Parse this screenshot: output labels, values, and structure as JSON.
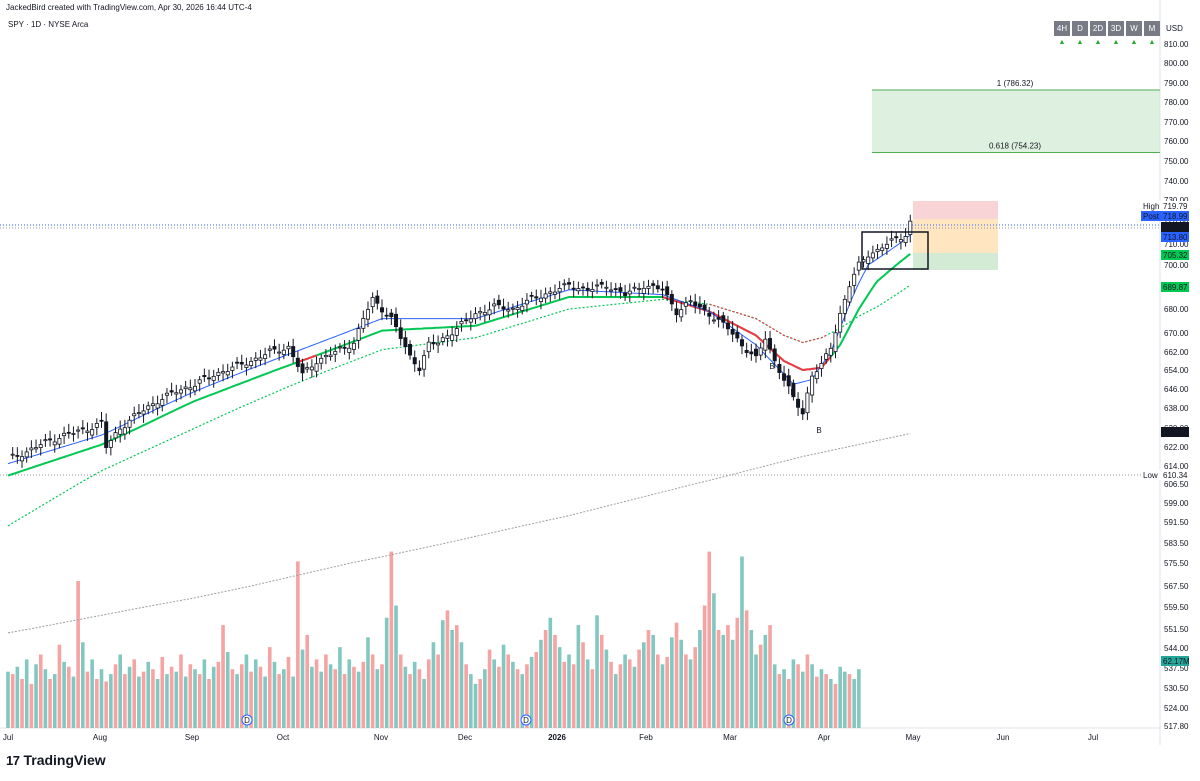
{
  "header": {
    "created": "JackedBird created with TradingView.com, Apr 30, 2026 16:44 UTC-4",
    "symbol": "SPY · 1D · NYSE Arca"
  },
  "timeframes": [
    {
      "label": "4H",
      "arrow": "▲"
    },
    {
      "label": "D",
      "arrow": "▲"
    },
    {
      "label": "2D",
      "arrow": "▲"
    },
    {
      "label": "3D",
      "arrow": "▲"
    },
    {
      "label": "W",
      "arrow": "▲"
    },
    {
      "label": "M",
      "arrow": "▲"
    }
  ],
  "currency": "USD",
  "footer": {
    "logo": "17",
    "brand": "TradingView"
  },
  "colors": {
    "up": "#089981",
    "down": "#f23645",
    "candle_body": "#131722",
    "ema_fast": "#2962ff",
    "ema_mid_up": "#00c853",
    "ema_mid_down": "#f23645",
    "ema_slow_up": "#00c853",
    "ema_slow_down": "#f23645",
    "sma200": "#9e9e9e",
    "vol_up": "#82c8c0",
    "vol_down": "#f5a3a3",
    "target_fill": "#c8e6c9",
    "target_line": "#4caf50",
    "pattern_label": "#2196f3",
    "price_tag": "#131722"
  },
  "chart_data": {
    "type": "candlestick",
    "title": "SPY · 1D · NYSE Arca",
    "xlabel": "",
    "ylabel": "",
    "x_ticks": [
      "Jul",
      "Aug",
      "Sep",
      "Oct",
      "Nov",
      "Dec",
      "2026",
      "Feb",
      "Mar",
      "Apr",
      "May",
      "Jun",
      "Jul"
    ],
    "y_ticks": [
      810,
      800,
      790,
      780,
      770,
      760,
      750,
      740,
      730,
      720,
      710,
      700,
      690,
      680,
      670,
      662,
      654,
      646,
      638,
      630,
      622,
      614,
      606.5,
      599,
      591.5,
      583.5,
      575.5,
      567.5,
      559.5,
      551.5,
      544,
      537.5,
      530.5,
      524,
      517.8
    ],
    "y_tick_labels": [
      "810.00",
      "800.00",
      "790.00",
      "780.00",
      "770.00",
      "760.00",
      "750.00",
      "740.00",
      "730.00",
      "720.00",
      "710.00",
      "700.00",
      "690.00",
      "680.00",
      "670.00",
      "662.00",
      "654.00",
      "646.00",
      "638.00",
      "630.00",
      "622.00",
      "614.00",
      "606.50",
      "599.00",
      "591.50",
      "583.50",
      "575.50",
      "567.50",
      "559.50",
      "551.50",
      "544.00",
      "537.50",
      "530.50",
      "524.00",
      "517.80"
    ],
    "ylim": [
      517.8,
      815
    ],
    "grid": false,
    "price_path": [
      [
        0,
        617
      ],
      [
        4,
        620
      ],
      [
        8,
        624
      ],
      [
        12,
        627
      ],
      [
        16,
        629
      ],
      [
        20,
        632
      ],
      [
        21,
        622
      ],
      [
        24,
        630
      ],
      [
        28,
        636
      ],
      [
        32,
        641
      ],
      [
        36,
        645
      ],
      [
        40,
        648
      ],
      [
        44,
        652
      ],
      [
        48,
        655
      ],
      [
        52,
        658
      ],
      [
        56,
        662
      ],
      [
        60,
        664
      ],
      [
        63,
        652
      ],
      [
        66,
        658
      ],
      [
        70,
        662
      ],
      [
        74,
        666
      ],
      [
        76,
        676
      ],
      [
        78,
        684
      ],
      [
        80,
        680
      ],
      [
        82,
        676
      ],
      [
        84,
        668
      ],
      [
        86,
        660
      ],
      [
        88,
        655
      ],
      [
        90,
        665
      ],
      [
        92,
        666
      ],
      [
        96,
        672
      ],
      [
        100,
        678
      ],
      [
        104,
        681
      ],
      [
        108,
        680
      ],
      [
        112,
        684
      ],
      [
        116,
        687
      ],
      [
        120,
        690
      ],
      [
        124,
        688
      ],
      [
        128,
        690
      ],
      [
        132,
        686
      ],
      [
        136,
        690
      ],
      [
        140,
        688
      ],
      [
        143,
        679
      ],
      [
        146,
        683
      ],
      [
        150,
        678
      ],
      [
        154,
        672
      ],
      [
        157,
        665
      ],
      [
        160,
        659
      ],
      [
        162,
        668
      ],
      [
        164,
        658
      ],
      [
        166,
        650
      ],
      [
        168,
        642
      ],
      [
        170,
        636
      ],
      [
        172,
        652
      ],
      [
        174,
        656
      ],
      [
        176,
        664
      ],
      [
        178,
        678
      ],
      [
        180,
        690
      ],
      [
        182,
        700
      ],
      [
        184,
        705
      ],
      [
        186,
        707
      ],
      [
        188,
        710
      ],
      [
        190,
        712
      ],
      [
        192,
        714
      ],
      [
        193,
        719
      ]
    ],
    "ema_fast_path": [
      [
        0,
        615
      ],
      [
        20,
        627
      ],
      [
        40,
        645
      ],
      [
        60,
        661
      ],
      [
        80,
        676
      ],
      [
        100,
        676
      ],
      [
        120,
        688
      ],
      [
        140,
        686
      ],
      [
        150,
        679
      ],
      [
        160,
        665
      ],
      [
        168,
        648
      ],
      [
        172,
        650
      ],
      [
        176,
        662
      ],
      [
        180,
        682
      ],
      [
        184,
        700
      ],
      [
        188,
        706
      ],
      [
        193,
        713.8
      ]
    ],
    "ema_mid_path": [
      [
        0,
        610
      ],
      [
        20,
        623
      ],
      [
        40,
        641
      ],
      [
        60,
        656
      ],
      [
        80,
        671
      ],
      [
        100,
        673
      ],
      [
        120,
        685
      ],
      [
        140,
        685
      ],
      [
        150,
        679
      ],
      [
        160,
        669
      ],
      [
        166,
        658
      ],
      [
        170,
        654
      ],
      [
        174,
        655
      ],
      [
        178,
        665
      ],
      [
        182,
        680
      ],
      [
        186,
        692
      ],
      [
        190,
        700
      ],
      [
        193,
        705.3
      ]
    ],
    "ema_slow_path": [
      [
        0,
        590
      ],
      [
        20,
        612
      ],
      [
        40,
        630
      ],
      [
        60,
        647
      ],
      [
        80,
        663
      ],
      [
        100,
        668
      ],
      [
        120,
        680
      ],
      [
        140,
        684
      ],
      [
        150,
        682
      ],
      [
        160,
        676
      ],
      [
        166,
        669
      ],
      [
        170,
        666
      ],
      [
        174,
        668
      ],
      [
        178,
        672
      ],
      [
        182,
        677
      ],
      [
        186,
        681
      ],
      [
        190,
        686
      ],
      [
        193,
        689.9
      ]
    ],
    "sma200_path": [
      [
        0,
        550
      ],
      [
        40,
        563
      ],
      [
        80,
        578
      ],
      [
        120,
        594
      ],
      [
        150,
        608
      ],
      [
        170,
        618
      ],
      [
        193,
        627.7
      ]
    ],
    "volume": [
      [
        23,
        "u"
      ],
      [
        22,
        "d"
      ],
      [
        25,
        "u"
      ],
      [
        20,
        "d"
      ],
      [
        28,
        "u"
      ],
      [
        18,
        "d"
      ],
      [
        26,
        "u"
      ],
      [
        30,
        "d"
      ],
      [
        24,
        "u"
      ],
      [
        20,
        "d"
      ],
      [
        22,
        "u"
      ],
      [
        34,
        "d"
      ],
      [
        27,
        "u"
      ],
      [
        25,
        "d"
      ],
      [
        21,
        "u"
      ],
      [
        60,
        "d"
      ],
      [
        35,
        "u"
      ],
      [
        23,
        "d"
      ],
      [
        28,
        "u"
      ],
      [
        20,
        "d"
      ],
      [
        24,
        "u"
      ],
      [
        19,
        "d"
      ],
      [
        22,
        "u"
      ],
      [
        26,
        "d"
      ],
      [
        30,
        "u"
      ],
      [
        22,
        "d"
      ],
      [
        25,
        "u"
      ],
      [
        28,
        "d"
      ],
      [
        21,
        "u"
      ],
      [
        23,
        "d"
      ],
      [
        27,
        "u"
      ],
      [
        24,
        "d"
      ],
      [
        20,
        "u"
      ],
      [
        29,
        "d"
      ],
      [
        22,
        "u"
      ],
      [
        25,
        "d"
      ],
      [
        23,
        "u"
      ],
      [
        30,
        "d"
      ],
      [
        21,
        "u"
      ],
      [
        26,
        "d"
      ],
      [
        24,
        "u"
      ],
      [
        22,
        "d"
      ],
      [
        28,
        "u"
      ],
      [
        20,
        "d"
      ],
      [
        25,
        "u"
      ],
      [
        27,
        "d"
      ],
      [
        42,
        "d"
      ],
      [
        31,
        "u"
      ],
      [
        24,
        "d"
      ],
      [
        22,
        "u"
      ],
      [
        26,
        "d"
      ],
      [
        30,
        "u"
      ],
      [
        23,
        "d"
      ],
      [
        28,
        "u"
      ],
      [
        25,
        "d"
      ],
      [
        21,
        "u"
      ],
      [
        33,
        "d"
      ],
      [
        27,
        "u"
      ],
      [
        22,
        "d"
      ],
      [
        24,
        "u"
      ],
      [
        29,
        "d"
      ],
      [
        21,
        "u"
      ],
      [
        68,
        "d"
      ],
      [
        32,
        "u"
      ],
      [
        38,
        "d"
      ],
      [
        25,
        "u"
      ],
      [
        28,
        "d"
      ],
      [
        23,
        "u"
      ],
      [
        30,
        "d"
      ],
      [
        26,
        "u"
      ],
      [
        24,
        "d"
      ],
      [
        33,
        "u"
      ],
      [
        22,
        "d"
      ],
      [
        28,
        "u"
      ],
      [
        25,
        "d"
      ],
      [
        23,
        "u"
      ],
      [
        27,
        "d"
      ],
      [
        37,
        "u"
      ],
      [
        30,
        "d"
      ],
      [
        24,
        "u"
      ],
      [
        26,
        "d"
      ],
      [
        45,
        "u"
      ],
      [
        72,
        "d"
      ],
      [
        50,
        "u"
      ],
      [
        30,
        "d"
      ],
      [
        25,
        "u"
      ],
      [
        22,
        "d"
      ],
      [
        27,
        "u"
      ],
      [
        24,
        "d"
      ],
      [
        20,
        "u"
      ],
      [
        28,
        "d"
      ],
      [
        35,
        "u"
      ],
      [
        30,
        "d"
      ],
      [
        44,
        "u"
      ],
      [
        48,
        "d"
      ],
      [
        40,
        "u"
      ],
      [
        42,
        "d"
      ],
      [
        35,
        "u"
      ],
      [
        26,
        "d"
      ],
      [
        22,
        "u"
      ],
      [
        18,
        "u"
      ],
      [
        20,
        "d"
      ],
      [
        24,
        "u"
      ],
      [
        32,
        "d"
      ],
      [
        28,
        "u"
      ],
      [
        25,
        "d"
      ],
      [
        34,
        "u"
      ],
      [
        30,
        "d"
      ],
      [
        27,
        "u"
      ],
      [
        24,
        "d"
      ],
      [
        22,
        "u"
      ],
      [
        26,
        "d"
      ],
      [
        29,
        "u"
      ],
      [
        31,
        "d"
      ],
      [
        36,
        "u"
      ],
      [
        40,
        "d"
      ],
      [
        45,
        "u"
      ],
      [
        38,
        "d"
      ],
      [
        33,
        "u"
      ],
      [
        27,
        "d"
      ],
      [
        30,
        "u"
      ],
      [
        26,
        "d"
      ],
      [
        42,
        "u"
      ],
      [
        35,
        "d"
      ],
      [
        28,
        "u"
      ],
      [
        24,
        "d"
      ],
      [
        46,
        "u"
      ],
      [
        38,
        "d"
      ],
      [
        32,
        "u"
      ],
      [
        27,
        "d"
      ],
      [
        22,
        "u"
      ],
      [
        26,
        "d"
      ],
      [
        30,
        "u"
      ],
      [
        28,
        "d"
      ],
      [
        25,
        "u"
      ],
      [
        32,
        "d"
      ],
      [
        35,
        "u"
      ],
      [
        40,
        "d"
      ],
      [
        38,
        "u"
      ],
      [
        30,
        "d"
      ],
      [
        26,
        "u"
      ],
      [
        29,
        "d"
      ],
      [
        37,
        "u"
      ],
      [
        43,
        "d"
      ],
      [
        36,
        "u"
      ],
      [
        30,
        "d"
      ],
      [
        28,
        "u"
      ],
      [
        33,
        "d"
      ],
      [
        40,
        "u"
      ],
      [
        50,
        "d"
      ],
      [
        72,
        "d"
      ],
      [
        55,
        "u"
      ],
      [
        40,
        "d"
      ],
      [
        38,
        "u"
      ],
      [
        42,
        "d"
      ],
      [
        36,
        "u"
      ],
      [
        45,
        "d"
      ],
      [
        70,
        "u"
      ],
      [
        48,
        "d"
      ],
      [
        40,
        "u"
      ],
      [
        30,
        "u"
      ],
      [
        34,
        "d"
      ],
      [
        38,
        "u"
      ],
      [
        42,
        "d"
      ],
      [
        26,
        "u"
      ],
      [
        22,
        "d"
      ],
      [
        24,
        "u"
      ],
      [
        20,
        "d"
      ],
      [
        28,
        "u"
      ],
      [
        26,
        "d"
      ],
      [
        23,
        "u"
      ],
      [
        30,
        "d"
      ],
      [
        26,
        "u"
      ],
      [
        21,
        "d"
      ],
      [
        24,
        "u"
      ],
      [
        22,
        "d"
      ],
      [
        20,
        "u"
      ],
      [
        18,
        "d"
      ],
      [
        25,
        "u"
      ],
      [
        23,
        "u"
      ],
      [
        22,
        "d"
      ],
      [
        20,
        "u"
      ],
      [
        24,
        "u"
      ]
    ],
    "annotations": {
      "fib_1_label": "1 (786.32)",
      "fib_618_label": "0.618 (754.23)",
      "fib_1": 786.32,
      "fib_618": 754.23,
      "pattern_labels": [
        "B",
        "B",
        "B"
      ],
      "dividend_markers": [
        "D",
        "D",
        "D"
      ],
      "high_label": "High",
      "high_value": "719.79",
      "post_label": "Post",
      "post_value": "718.99",
      "last_price": "718.66",
      "ema_fast_value": "713.80",
      "ema_mid_value": "705.32",
      "ema_slow_value": "689.87",
      "sma200_value": "627.71",
      "low_label": "Low",
      "low_value": "610.34",
      "volume_value": "62.17M"
    }
  }
}
